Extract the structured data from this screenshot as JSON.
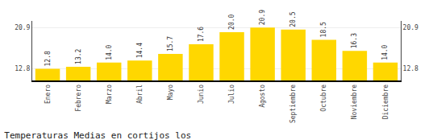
{
  "chart_data": {
    "type": "bar",
    "title": "Temperaturas Medias en cortijos los",
    "categories": [
      "Enero",
      "Febrero",
      "Marzo",
      "Abril",
      "Mayo",
      "Junio",
      "Julio",
      "Agosto",
      "Septiembre",
      "Octubre",
      "Noviembre",
      "Diciembre"
    ],
    "values": [
      12.8,
      13.2,
      14.0,
      14.4,
      15.7,
      17.6,
      20.0,
      20.9,
      20.5,
      18.5,
      16.3,
      14.0
    ],
    "value_labels": [
      "12.8",
      "13.2",
      "14.0",
      "14.4",
      "15.7",
      "17.6",
      "20.0",
      "20.9",
      "20.5",
      "18.5",
      "16.3",
      "14.0"
    ],
    "data_labels": true,
    "color": "#FFD700",
    "ylim": [
      10.5,
      22.2
    ],
    "yticks": [
      12.8,
      20.9
    ],
    "y2lim": [
      10.5,
      22.2
    ],
    "y2ticks": [
      12.8,
      20.9
    ],
    "grid": true
  }
}
